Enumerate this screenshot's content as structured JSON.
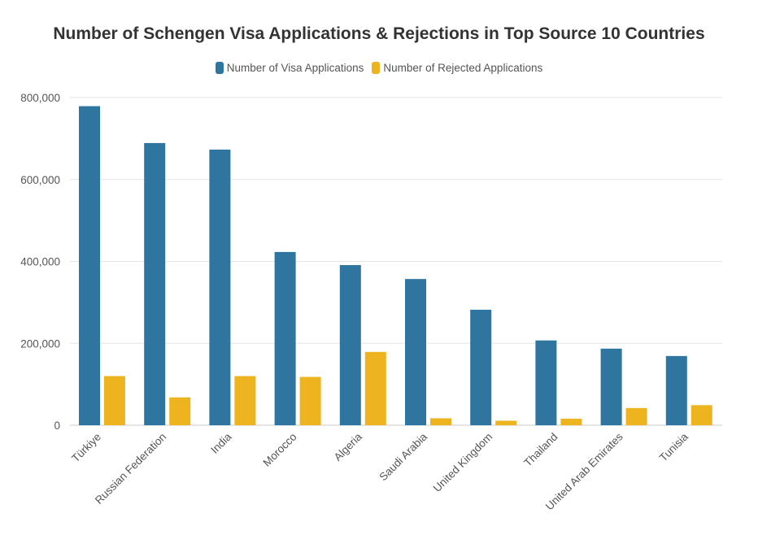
{
  "chart_data": {
    "type": "bar",
    "title": "Number of Schengen Visa Applications & Rejections in Top Source 10 Countries",
    "categories": [
      "Türkiye",
      "Russian Federation",
      "India",
      "Morocco",
      "Algeria",
      "Saudi Arabia",
      "United Kingdom",
      "Thailand",
      "United Arab Emirates",
      "Tunisia"
    ],
    "series": [
      {
        "name": "Number of Visa Applications",
        "color": "#2e75a0",
        "values": [
          779000,
          689000,
          673000,
          423000,
          391000,
          357000,
          282000,
          207000,
          187000,
          169000
        ]
      },
      {
        "name": "Number of Rejected Applications",
        "color": "#eeb41f",
        "values": [
          120000,
          68000,
          120000,
          118000,
          179000,
          17000,
          11000,
          16000,
          42000,
          49000
        ]
      }
    ],
    "ylim": [
      0,
      800000
    ],
    "yticks": [
      0,
      200000,
      400000,
      600000,
      800000
    ],
    "ytick_labels": [
      "0",
      "200,000",
      "400,000",
      "600,000",
      "800,000"
    ],
    "grid": true,
    "legend": "top"
  }
}
